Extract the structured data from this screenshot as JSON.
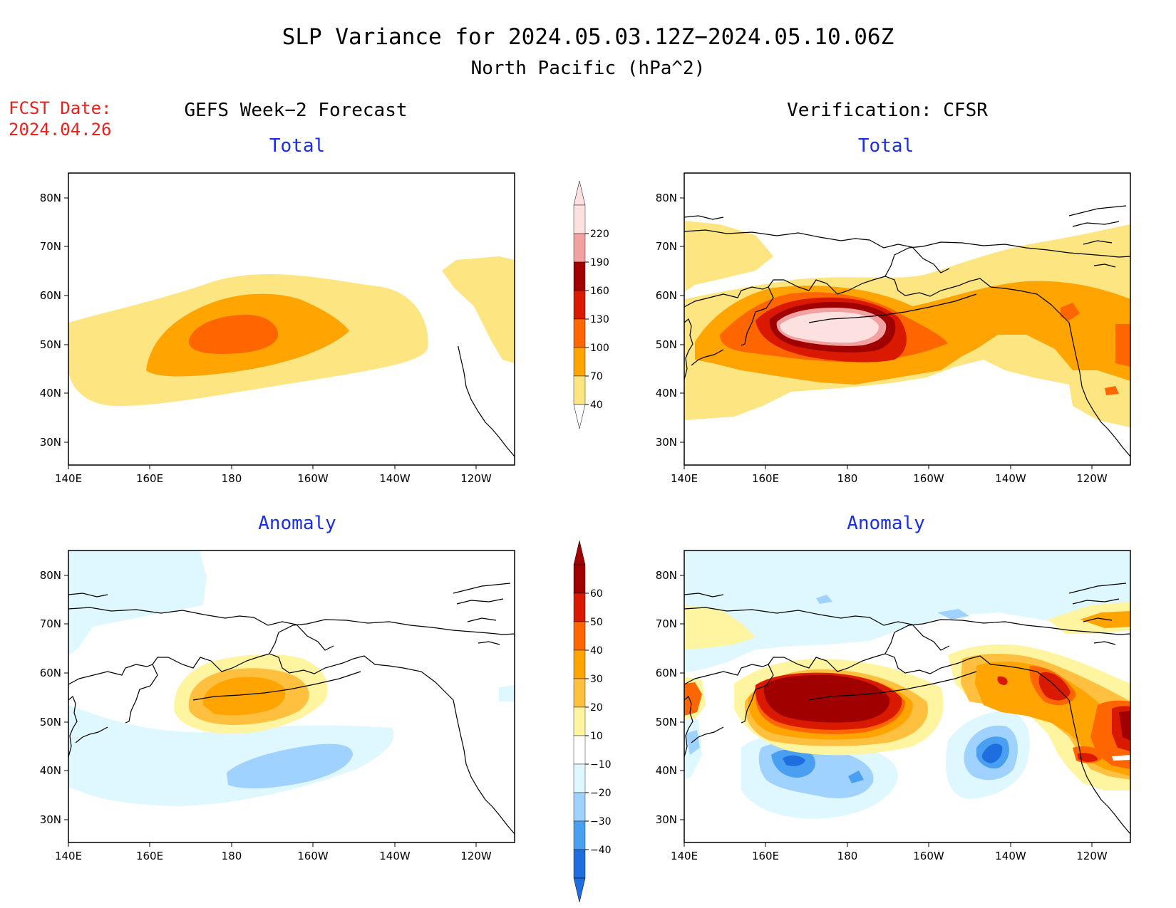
{
  "title": "SLP Variance for 2024.05.03.12Z−2024.05.10.06Z",
  "subtitle": "North Pacific (hPa^2)",
  "fcst_label": "FCST Date:",
  "fcst_date": "2024.04.26",
  "left_heading": "GEFS Week−2 Forecast",
  "right_heading": "Verification: CFSR",
  "panels": {
    "total_left": "Total",
    "total_right": "Total",
    "anom_left": "Anomaly",
    "anom_right": "Anomaly"
  },
  "lat_ticks": [
    "80N",
    "70N",
    "60N",
    "50N",
    "40N",
    "30N"
  ],
  "lon_ticks": [
    "140E",
    "160E",
    "180",
    "160W",
    "140W",
    "120W"
  ],
  "total_colorbar": {
    "labels": [
      "220",
      "190",
      "160",
      "130",
      "100",
      "70",
      "40"
    ],
    "colors": [
      "#fde0e0",
      "#f2a0a0",
      "#a00000",
      "#d91a00",
      "#ff6600",
      "#ffa400",
      "#fde582"
    ]
  },
  "anomaly_colorbar": {
    "labels": [
      "60",
      "50",
      "40",
      "30",
      "20",
      "10",
      "−10",
      "−20",
      "−30",
      "−40"
    ],
    "colors": [
      "#a00000",
      "#d91a00",
      "#ff6600",
      "#ffa400",
      "#ffc040",
      "#fff4a0",
      "#ffffff",
      "#dff8ff",
      "#a0d2ff",
      "#4aa0f0",
      "#1e6ee0"
    ]
  }
}
